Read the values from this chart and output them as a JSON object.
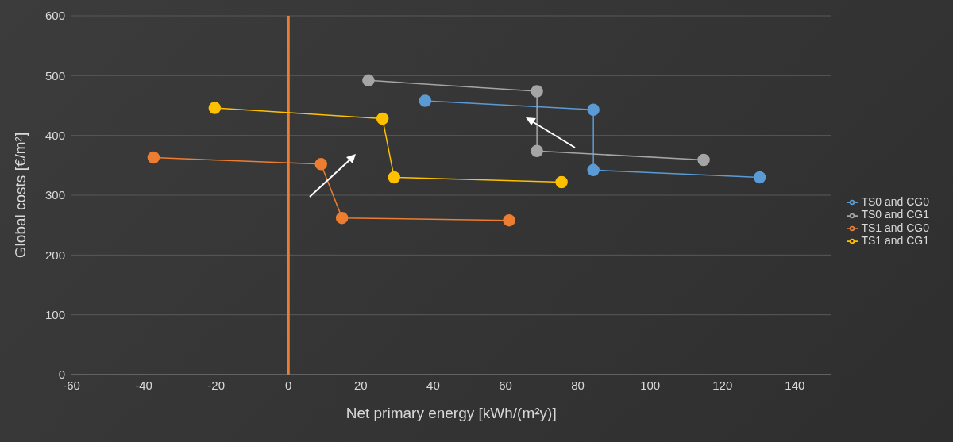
{
  "chart_data": {
    "type": "line",
    "xlabel": "Net primary energy [kWh/(m²y)]",
    "ylabel": "Global costs [€/m²]",
    "xlim": [
      -60,
      150
    ],
    "xticks": [
      -60,
      -40,
      -20,
      0,
      20,
      40,
      60,
      80,
      100,
      120,
      140
    ],
    "ylim": [
      0,
      600
    ],
    "yticks": [
      0,
      100,
      200,
      300,
      400,
      500,
      600
    ],
    "grid": "y",
    "legend": "right",
    "marker": "circle",
    "line_style": "solid",
    "ref_lines": [
      {
        "axis": "x",
        "value": 0,
        "color": "#ed7d31"
      }
    ],
    "series": [
      {
        "name": "TS0 and CG0",
        "color": "#5b9bd5",
        "x": [
          37.8,
          84.3,
          84.3,
          130.3
        ],
        "values": [
          458,
          443,
          342,
          330
        ]
      },
      {
        "name": "TS1 and CG0",
        "color": "#ed7d31",
        "x": [
          -37.3,
          9,
          14.8,
          61
        ],
        "values": [
          363,
          352,
          262,
          258
        ]
      },
      {
        "name": "TS0 and CG1",
        "color": "#a5a5a5",
        "x": [
          22.1,
          68.7,
          68.7,
          114.8
        ],
        "values": [
          492,
          474,
          374,
          359
        ]
      },
      {
        "name": "TS1 and CG1",
        "color": "#ffc000",
        "x": [
          -20.4,
          26,
          29.2,
          75.5
        ],
        "values": [
          446,
          428,
          330,
          322
        ]
      }
    ]
  }
}
